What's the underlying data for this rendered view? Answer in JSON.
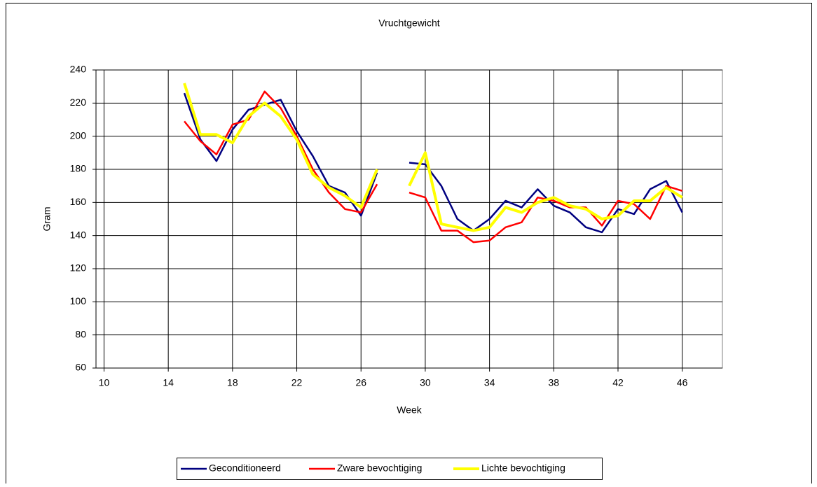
{
  "chart_data": {
    "type": "line",
    "title": "Vruchtgewicht",
    "x_label": "Week",
    "y_label": "Gram",
    "x": [
      15,
      16,
      17,
      18,
      19,
      20,
      21,
      22,
      23,
      24,
      25,
      26,
      27,
      28,
      29,
      30,
      31,
      32,
      33,
      34,
      35,
      36,
      37,
      38,
      39,
      40,
      41,
      42,
      43,
      44,
      45,
      46
    ],
    "series": [
      {
        "name": "Geconditioneerd",
        "color": "#000080",
        "values": [
          226,
          198,
          185,
          204,
          216,
          219,
          222,
          203,
          188,
          170,
          166,
          152,
          178,
          null,
          184,
          183,
          170,
          150,
          143,
          150,
          161,
          157,
          168,
          158,
          154,
          145,
          142,
          156,
          153,
          168,
          173,
          154
        ]
      },
      {
        "name": "Zware bevochtiging",
        "color": "#ff0000",
        "values": [
          209,
          197,
          189,
          207,
          210,
          227,
          217,
          200,
          180,
          166,
          156,
          154,
          171,
          null,
          166,
          163,
          143,
          143,
          136,
          137,
          145,
          148,
          163,
          161,
          157,
          157,
          146,
          161,
          159,
          150,
          170,
          167
        ]
      },
      {
        "name": "Lichte bevochtiging",
        "color": "#ffff00",
        "values": [
          232,
          201,
          201,
          196,
          212,
          220,
          212,
          198,
          177,
          169,
          164,
          157,
          180,
          null,
          170,
          190,
          147,
          145,
          143,
          145,
          157,
          154,
          160,
          163,
          158,
          156,
          150,
          152,
          161,
          161,
          169,
          163
        ]
      }
    ],
    "xlim": [
      9.5,
      48.5
    ],
    "xticks": [
      10,
      14,
      18,
      22,
      26,
      30,
      34,
      38,
      42,
      46
    ],
    "ylim": [
      60,
      240
    ],
    "yticks": [
      60,
      80,
      100,
      120,
      140,
      160,
      180,
      200,
      220,
      240
    ],
    "grid": true,
    "legend": "bottom"
  }
}
